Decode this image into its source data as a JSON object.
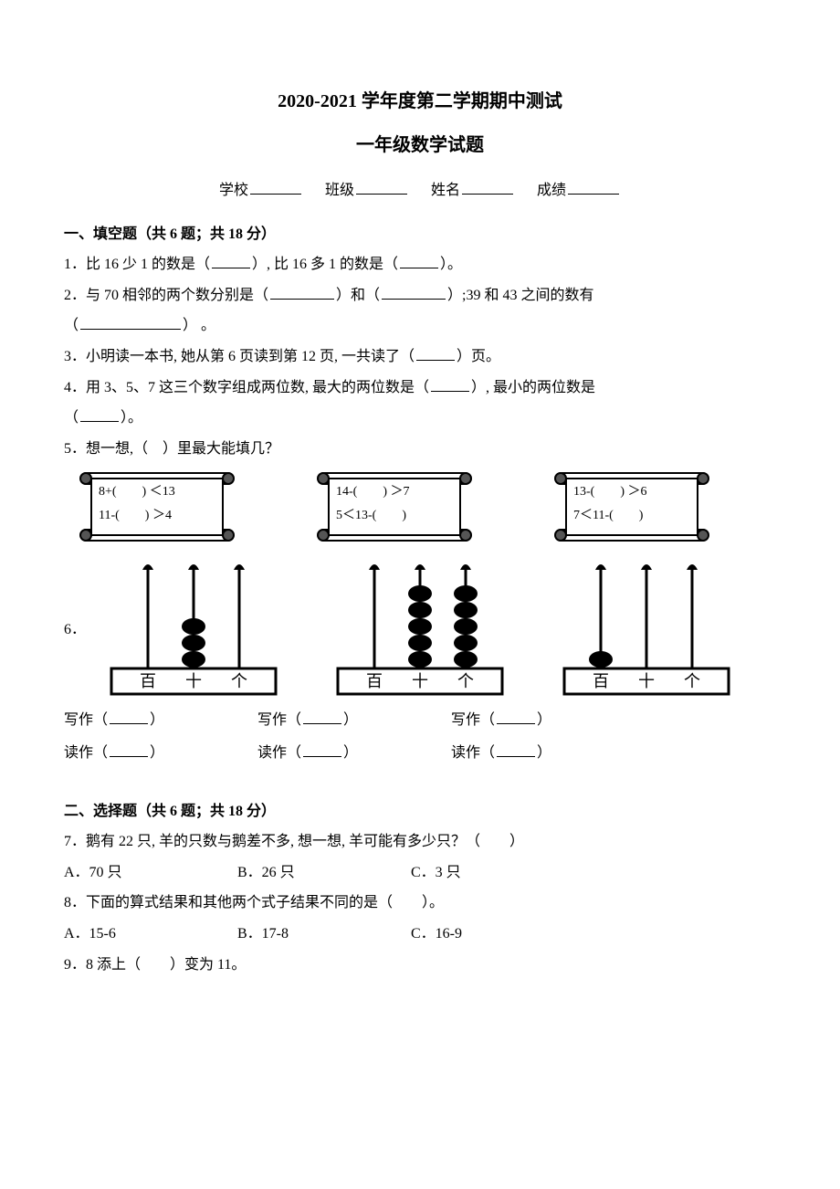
{
  "header": {
    "title1": "2020-2021 学年度第二学期期中测试",
    "title2": "一年级数学试题",
    "school_label": "学校",
    "class_label": "班级",
    "name_label": "姓名",
    "score_label": "成绩"
  },
  "sectionA": {
    "heading": "一、填空题（共 6 题；共 18 分）",
    "q1": "1．比 16 少 1 的数是（",
    "q1b": "）, 比 16 多 1 的数是（",
    "q1c": "）。",
    "q2": "2．与 70 相邻的两个数分别是（",
    "q2b": "）和（",
    "q2c": "）;39 和 43 之间的数有",
    "q2d": "（",
    "q2e": "） 。",
    "q3": "3．小明读一本书, 她从第 6 页读到第 12 页, 一共读了（",
    "q3b": "）页。",
    "q4": "4．用 3、5、7 这三个数字组成两位数, 最大的两位数是（",
    "q4b": "）, 最小的两位数是",
    "q4c": "（",
    "q4d": "）。",
    "q5": "5．想一想,（　）里最大能填几？",
    "scrolls": [
      {
        "line1": "8+(　　) ＜13",
        "line2": "11-(　　) ＞4"
      },
      {
        "line1": "14-(　　) ＞7",
        "line2": "5＜13-(　　)"
      },
      {
        "line1": "13-(　　) ＞6",
        "line2": "7＜11-(　　)"
      }
    ],
    "q6": "6．",
    "abaci": [
      {
        "beads": [
          0,
          3,
          0
        ],
        "labels": [
          "百",
          "十",
          "个"
        ]
      },
      {
        "beads": [
          0,
          5,
          5
        ],
        "labels": [
          "百",
          "十",
          "个"
        ]
      },
      {
        "beads": [
          1,
          0,
          0
        ],
        "labels": [
          "百",
          "十",
          "个"
        ]
      }
    ],
    "write_label": "写作（",
    "read_label": "读作（",
    "paren_close": "）"
  },
  "sectionB": {
    "heading": "二、选择题（共 6 题；共 18 分）",
    "q7": "7．鹅有 22 只, 羊的只数与鹅差不多, 想一想, 羊可能有多少只？（　　）",
    "q7_opts": [
      "A．70 只",
      "B．26 只",
      "C．3 只"
    ],
    "q8": "8．下面的算式结果和其他两个式子结果不同的是（　　）。",
    "q8_opts": [
      "A．15-6",
      "B．17-8",
      "C．16-9"
    ],
    "q9": "9．8 添上（　　）变为 11。"
  },
  "style": {
    "bead_color": "#000000",
    "scroll_stroke": "#000000",
    "scroll_fill": "#ffffff",
    "rod_color": "#000000"
  }
}
